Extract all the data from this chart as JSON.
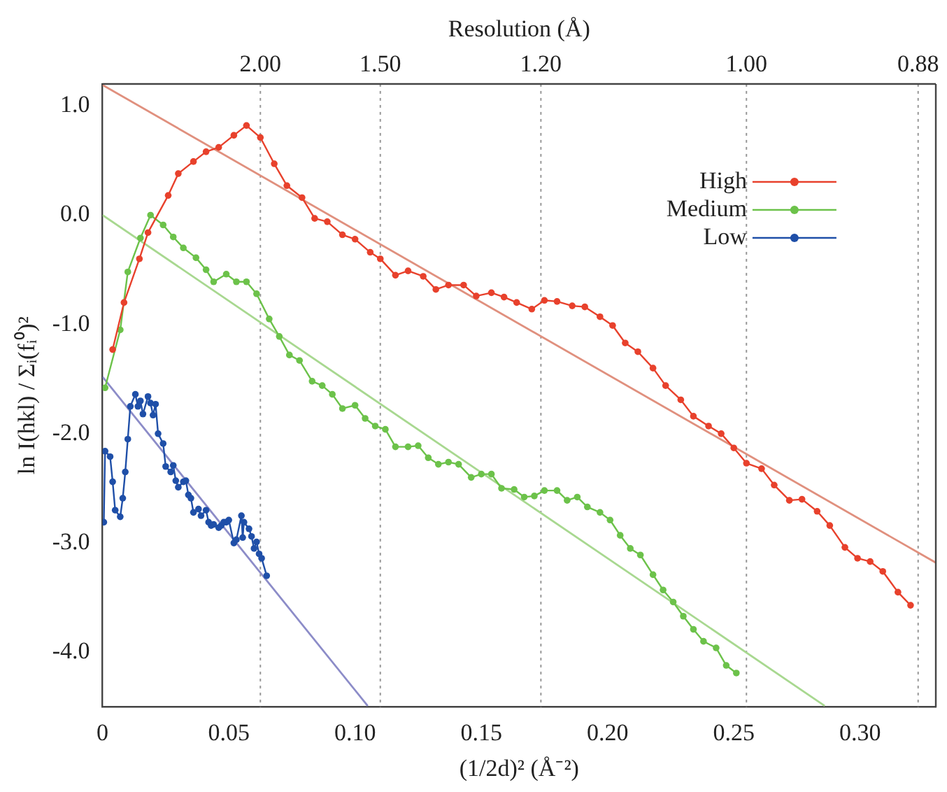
{
  "chart_data": {
    "type": "line",
    "xlabel": "(1/2d)² (Å⁻²)",
    "ylabel": "ln I(hkl) / Σᵢ(fᵢ⁰)²",
    "annotations": [
      "Resolution (Å)",
      "2.00",
      "1.50",
      "1.20",
      "1.00",
      "0.88"
    ],
    "xlim": [
      0,
      0.33
    ],
    "ylim": [
      -4.5,
      1.2
    ],
    "xticks": [
      0,
      0.05,
      {
        "value": 0.1,
        "label": "0.10"
      },
      0.15,
      {
        "value": 0.2,
        "label": "0.20"
      },
      0.25,
      {
        "value": 0.3,
        "label": "0.30"
      }
    ],
    "yticks": [
      {
        "value": 1,
        "label": "1.0"
      },
      {
        "value": 0,
        "label": "0.0"
      },
      {
        "value": -1,
        "label": "-1.0"
      },
      {
        "value": -2,
        "label": "-2.0"
      },
      {
        "value": -3,
        "label": "-3.0"
      },
      {
        "value": -4,
        "label": "-4.0"
      }
    ],
    "ref_lines": [
      {
        "axis": "x",
        "value": 0.0625,
        "color": "#999999",
        "line_style": "dotted"
      },
      {
        "axis": "x",
        "value": 0.11,
        "color": "#999999",
        "line_style": "dotted"
      },
      {
        "axis": "x",
        "value": 0.1736,
        "color": "#999999",
        "line_style": "dotted"
      },
      {
        "axis": "x",
        "value": 0.255,
        "color": "#999999",
        "line_style": "dotted"
      },
      {
        "axis": "x",
        "value": 0.323,
        "color": "#999999",
        "line_style": "dotted"
      }
    ],
    "grid": false,
    "legend": "top right",
    "marker": "circle",
    "line_style": "solid",
    "series": [
      {
        "name": "High",
        "color": "#e8412c",
        "x": [
          0.004,
          0.0085,
          0.0146,
          0.018,
          0.026,
          0.03,
          0.036,
          0.041,
          0.046,
          0.052,
          0.057,
          0.0625,
          0.068,
          0.073,
          0.079,
          0.084,
          0.089,
          0.095,
          0.1,
          0.106,
          0.11,
          0.116,
          0.121,
          0.127,
          0.132,
          0.137,
          0.143,
          0.148,
          0.154,
          0.159,
          0.164,
          0.17,
          0.175,
          0.18,
          0.186,
          0.191,
          0.197,
          0.202,
          0.207,
          0.212,
          0.218,
          0.223,
          0.229,
          0.234,
          0.24,
          0.245,
          0.25,
          0.255,
          0.261,
          0.266,
          0.272,
          0.277,
          0.283,
          0.288,
          0.294,
          0.299,
          0.304,
          0.309,
          0.315,
          0.32
        ],
        "values": [
          -1.23,
          -0.8,
          -0.4,
          -0.16,
          0.18,
          0.38,
          0.49,
          0.58,
          0.62,
          0.73,
          0.82,
          0.71,
          0.47,
          0.27,
          0.16,
          -0.03,
          -0.06,
          -0.18,
          -0.22,
          -0.34,
          -0.4,
          -0.55,
          -0.51,
          -0.56,
          -0.68,
          -0.64,
          -0.64,
          -0.74,
          -0.71,
          -0.75,
          -0.8,
          -0.86,
          -0.78,
          -0.79,
          -0.83,
          -0.84,
          -0.93,
          -1.01,
          -1.17,
          -1.25,
          -1.4,
          -1.56,
          -1.69,
          -1.84,
          -1.93,
          -2.0,
          -2.13,
          -2.27,
          -2.32,
          -2.47,
          -2.61,
          -2.6,
          -2.71,
          -2.84,
          -3.04,
          -3.14,
          -3.17,
          -3.26,
          -3.45,
          -3.57
        ]
      },
      {
        "name": "Medium",
        "color": "#6cc24a",
        "x": [
          0.001,
          0.007,
          0.01,
          0.015,
          0.019,
          0.024,
          0.028,
          0.032,
          0.037,
          0.041,
          0.044,
          0.049,
          0.053,
          0.057,
          0.061,
          0.066,
          0.07,
          0.074,
          0.078,
          0.083,
          0.087,
          0.091,
          0.095,
          0.1,
          0.104,
          0.108,
          0.112,
          0.116,
          0.121,
          0.125,
          0.129,
          0.133,
          0.137,
          0.141,
          0.146,
          0.15,
          0.154,
          0.158,
          0.163,
          0.167,
          0.171,
          0.175,
          0.18,
          0.184,
          0.188,
          0.192,
          0.197,
          0.201,
          0.205,
          0.209,
          0.213,
          0.218,
          0.222,
          0.226,
          0.23,
          0.234,
          0.238,
          0.243,
          0.247,
          0.251
        ],
        "values": [
          -1.58,
          -1.05,
          -0.52,
          -0.21,
          0.0,
          -0.09,
          -0.2,
          -0.3,
          -0.39,
          -0.5,
          -0.61,
          -0.54,
          -0.61,
          -0.61,
          -0.72,
          -0.95,
          -1.11,
          -1.28,
          -1.33,
          -1.52,
          -1.56,
          -1.64,
          -1.77,
          -1.74,
          -1.86,
          -1.93,
          -1.96,
          -2.12,
          -2.12,
          -2.11,
          -2.22,
          -2.28,
          -2.26,
          -2.28,
          -2.4,
          -2.37,
          -2.37,
          -2.5,
          -2.51,
          -2.58,
          -2.57,
          -2.52,
          -2.52,
          -2.61,
          -2.58,
          -2.67,
          -2.72,
          -2.79,
          -2.93,
          -3.05,
          -3.11,
          -3.29,
          -3.43,
          -3.54,
          -3.67,
          -3.79,
          -3.9,
          -3.96,
          -4.12,
          -4.19
        ]
      },
      {
        "name": "Low",
        "color": "#1f4fa8",
        "x": [
          0.0005,
          0.001,
          0.003,
          0.004,
          0.005,
          0.007,
          0.008,
          0.009,
          0.01,
          0.011,
          0.013,
          0.014,
          0.015,
          0.016,
          0.018,
          0.019,
          0.02,
          0.021,
          0.022,
          0.024,
          0.025,
          0.027,
          0.028,
          0.029,
          0.03,
          0.032,
          0.033,
          0.034,
          0.035,
          0.036,
          0.038,
          0.039,
          0.041,
          0.042,
          0.043,
          0.044,
          0.046,
          0.047,
          0.048,
          0.049,
          0.05,
          0.052,
          0.053,
          0.055,
          0.0555,
          0.056,
          0.058,
          0.059,
          0.06,
          0.061,
          0.062,
          0.063,
          0.065
        ],
        "values": [
          -2.81,
          -2.16,
          -2.21,
          -2.44,
          -2.7,
          -2.76,
          -2.59,
          -2.35,
          -2.05,
          -1.75,
          -1.64,
          -1.75,
          -1.7,
          -1.82,
          -1.66,
          -1.72,
          -1.83,
          -1.73,
          -2.0,
          -2.09,
          -2.3,
          -2.35,
          -2.29,
          -2.43,
          -2.49,
          -2.44,
          -2.43,
          -2.56,
          -2.59,
          -2.72,
          -2.69,
          -2.75,
          -2.7,
          -2.81,
          -2.84,
          -2.83,
          -2.86,
          -2.84,
          -2.81,
          -2.81,
          -2.79,
          -3.0,
          -2.97,
          -2.75,
          -2.95,
          -2.81,
          -2.87,
          -2.94,
          -3.05,
          -2.99,
          -3.1,
          -3.14,
          -3.3
        ]
      },
      {
        "type": "line",
        "marker": "none",
        "color": "#e0907e",
        "x": [
          0,
          0.33
        ],
        "values": [
          1.19,
          -3.18
        ]
      },
      {
        "type": "line",
        "marker": "none",
        "color": "#a8d890",
        "x": [
          0,
          0.286
        ],
        "values": [
          0.0,
          -4.49
        ]
      },
      {
        "type": "line",
        "marker": "none",
        "color": "#8c8cc8",
        "x": [
          0,
          0.105
        ],
        "values": [
          -1.48,
          -4.49
        ]
      }
    ]
  }
}
